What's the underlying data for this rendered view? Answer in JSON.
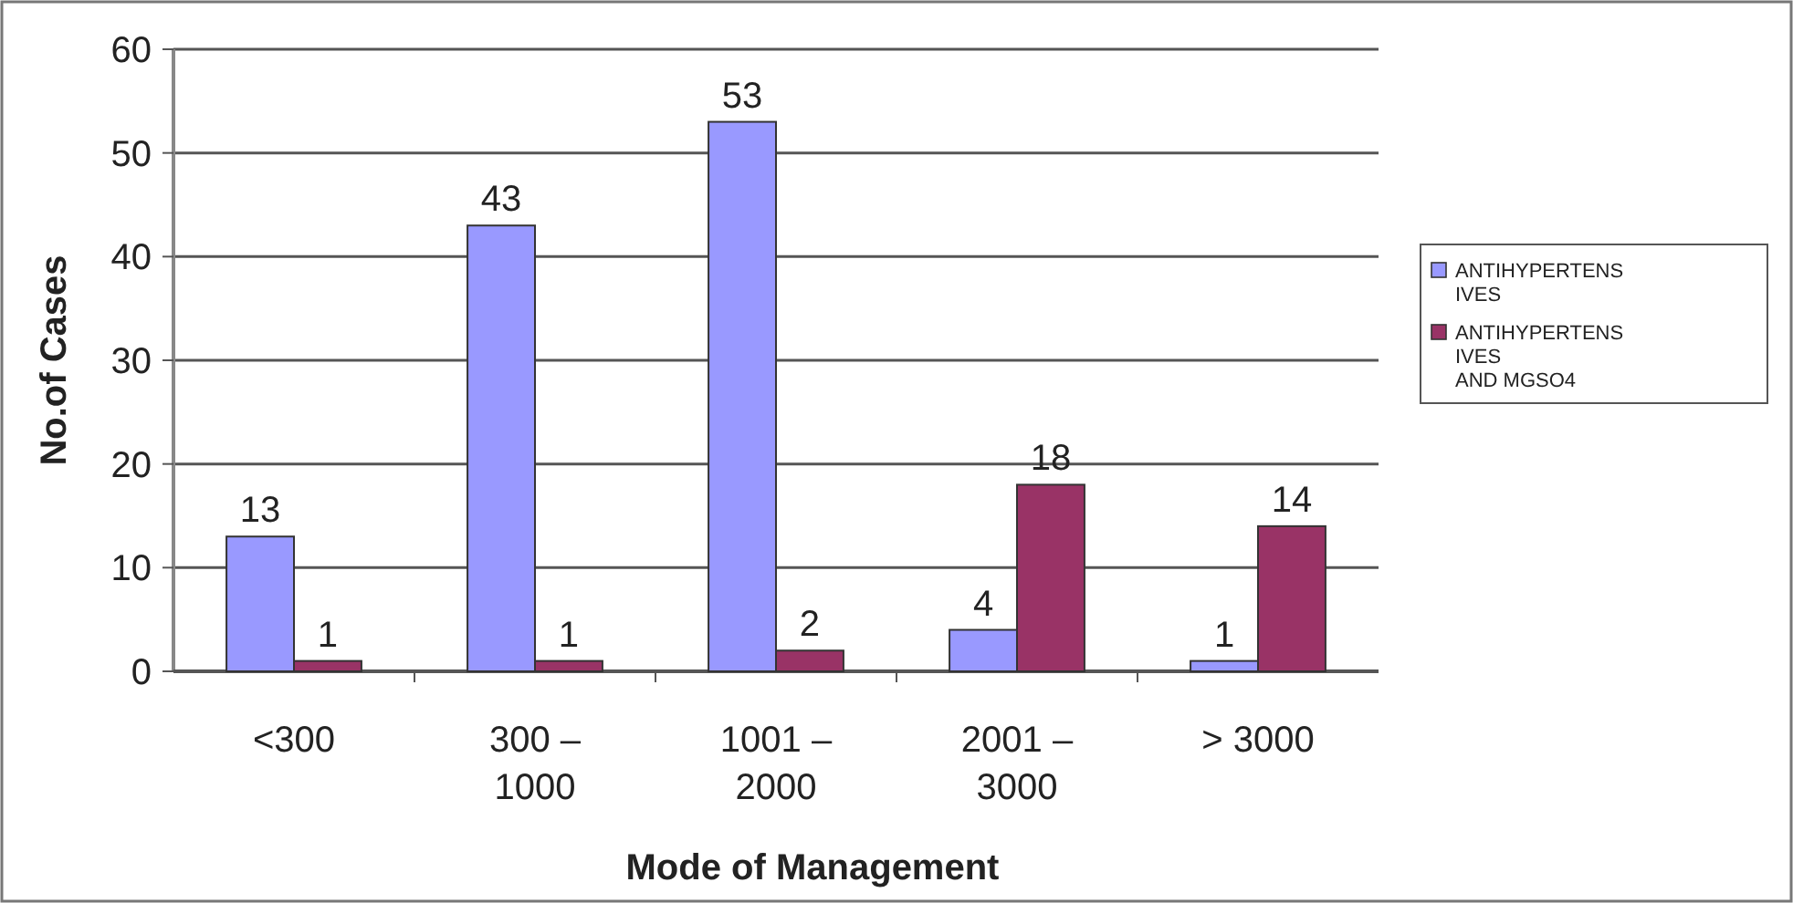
{
  "chart_data": {
    "type": "bar",
    "xlabel": "Mode of Management",
    "ylabel": "No.of Cases",
    "categories": [
      "<300",
      "300 – 1000",
      "1001 – 2000",
      "2001 – 3000",
      "> 3000"
    ],
    "series": [
      {
        "name": "ANTIHYPERTENSIVES",
        "color": "#9999ff",
        "values": [
          13,
          43,
          53,
          4,
          1
        ]
      },
      {
        "name": "ANTIHYPERTENSIVES AND MGSO4",
        "color": "#993366",
        "values": [
          1,
          1,
          2,
          18,
          14
        ]
      }
    ],
    "ylim": [
      0,
      60
    ],
    "yticks": [
      0,
      10,
      20,
      30,
      40,
      50,
      60
    ],
    "grid": "y",
    "legend": "right",
    "data_labels": true
  }
}
